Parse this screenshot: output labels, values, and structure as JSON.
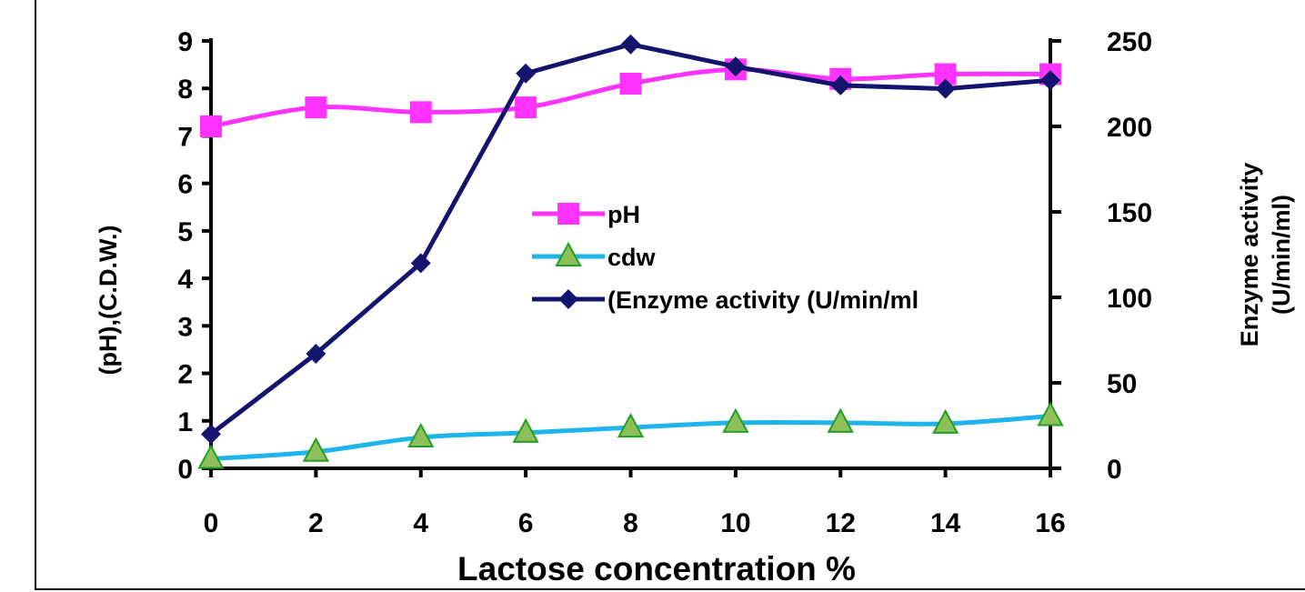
{
  "chart_data": {
    "type": "line",
    "title": "",
    "xlabel": "Lactose concentration %",
    "ylabel_left": "(pH),(C.D.W.)",
    "ylabel_right": [
      "Enzyme activity",
      "(U/min/ml)"
    ],
    "x": [
      0,
      2,
      4,
      6,
      8,
      10,
      12,
      14,
      16
    ],
    "xlim": [
      0,
      16
    ],
    "ylim_left": [
      0,
      9
    ],
    "ylim_right": [
      0,
      250
    ],
    "x_ticks": [
      "0",
      "2",
      "4",
      "6",
      "8",
      "10",
      "12",
      "14",
      "16"
    ],
    "y_left_ticks": [
      "0",
      "1",
      "2",
      "3",
      "4",
      "5",
      "6",
      "7",
      "8",
      "9"
    ],
    "y_right_ticks": [
      "0",
      "50",
      "100",
      "150",
      "200",
      "250"
    ],
    "grid": false,
    "legend_position": "center",
    "series": [
      {
        "name": "pH",
        "axis": "left",
        "marker": "square",
        "color": "#ff33ff",
        "smooth": true,
        "values": [
          7.2,
          7.6,
          7.5,
          7.6,
          8.1,
          8.4,
          8.2,
          8.3,
          8.3
        ]
      },
      {
        "name": "cdw",
        "axis": "left",
        "marker": "triangle",
        "color": "#1fb4ec",
        "marker_fill": "#8fbf5a",
        "smooth": true,
        "values": [
          0.2,
          0.35,
          0.65,
          0.75,
          0.86,
          0.96,
          0.96,
          0.94,
          1.1
        ]
      },
      {
        "name": "(Enzyme activity (U/min/ml",
        "axis": "right",
        "marker": "diamond",
        "color": "#14146e",
        "smooth": false,
        "values": [
          20,
          67,
          120,
          231,
          248,
          235,
          224,
          222,
          227
        ]
      }
    ]
  }
}
